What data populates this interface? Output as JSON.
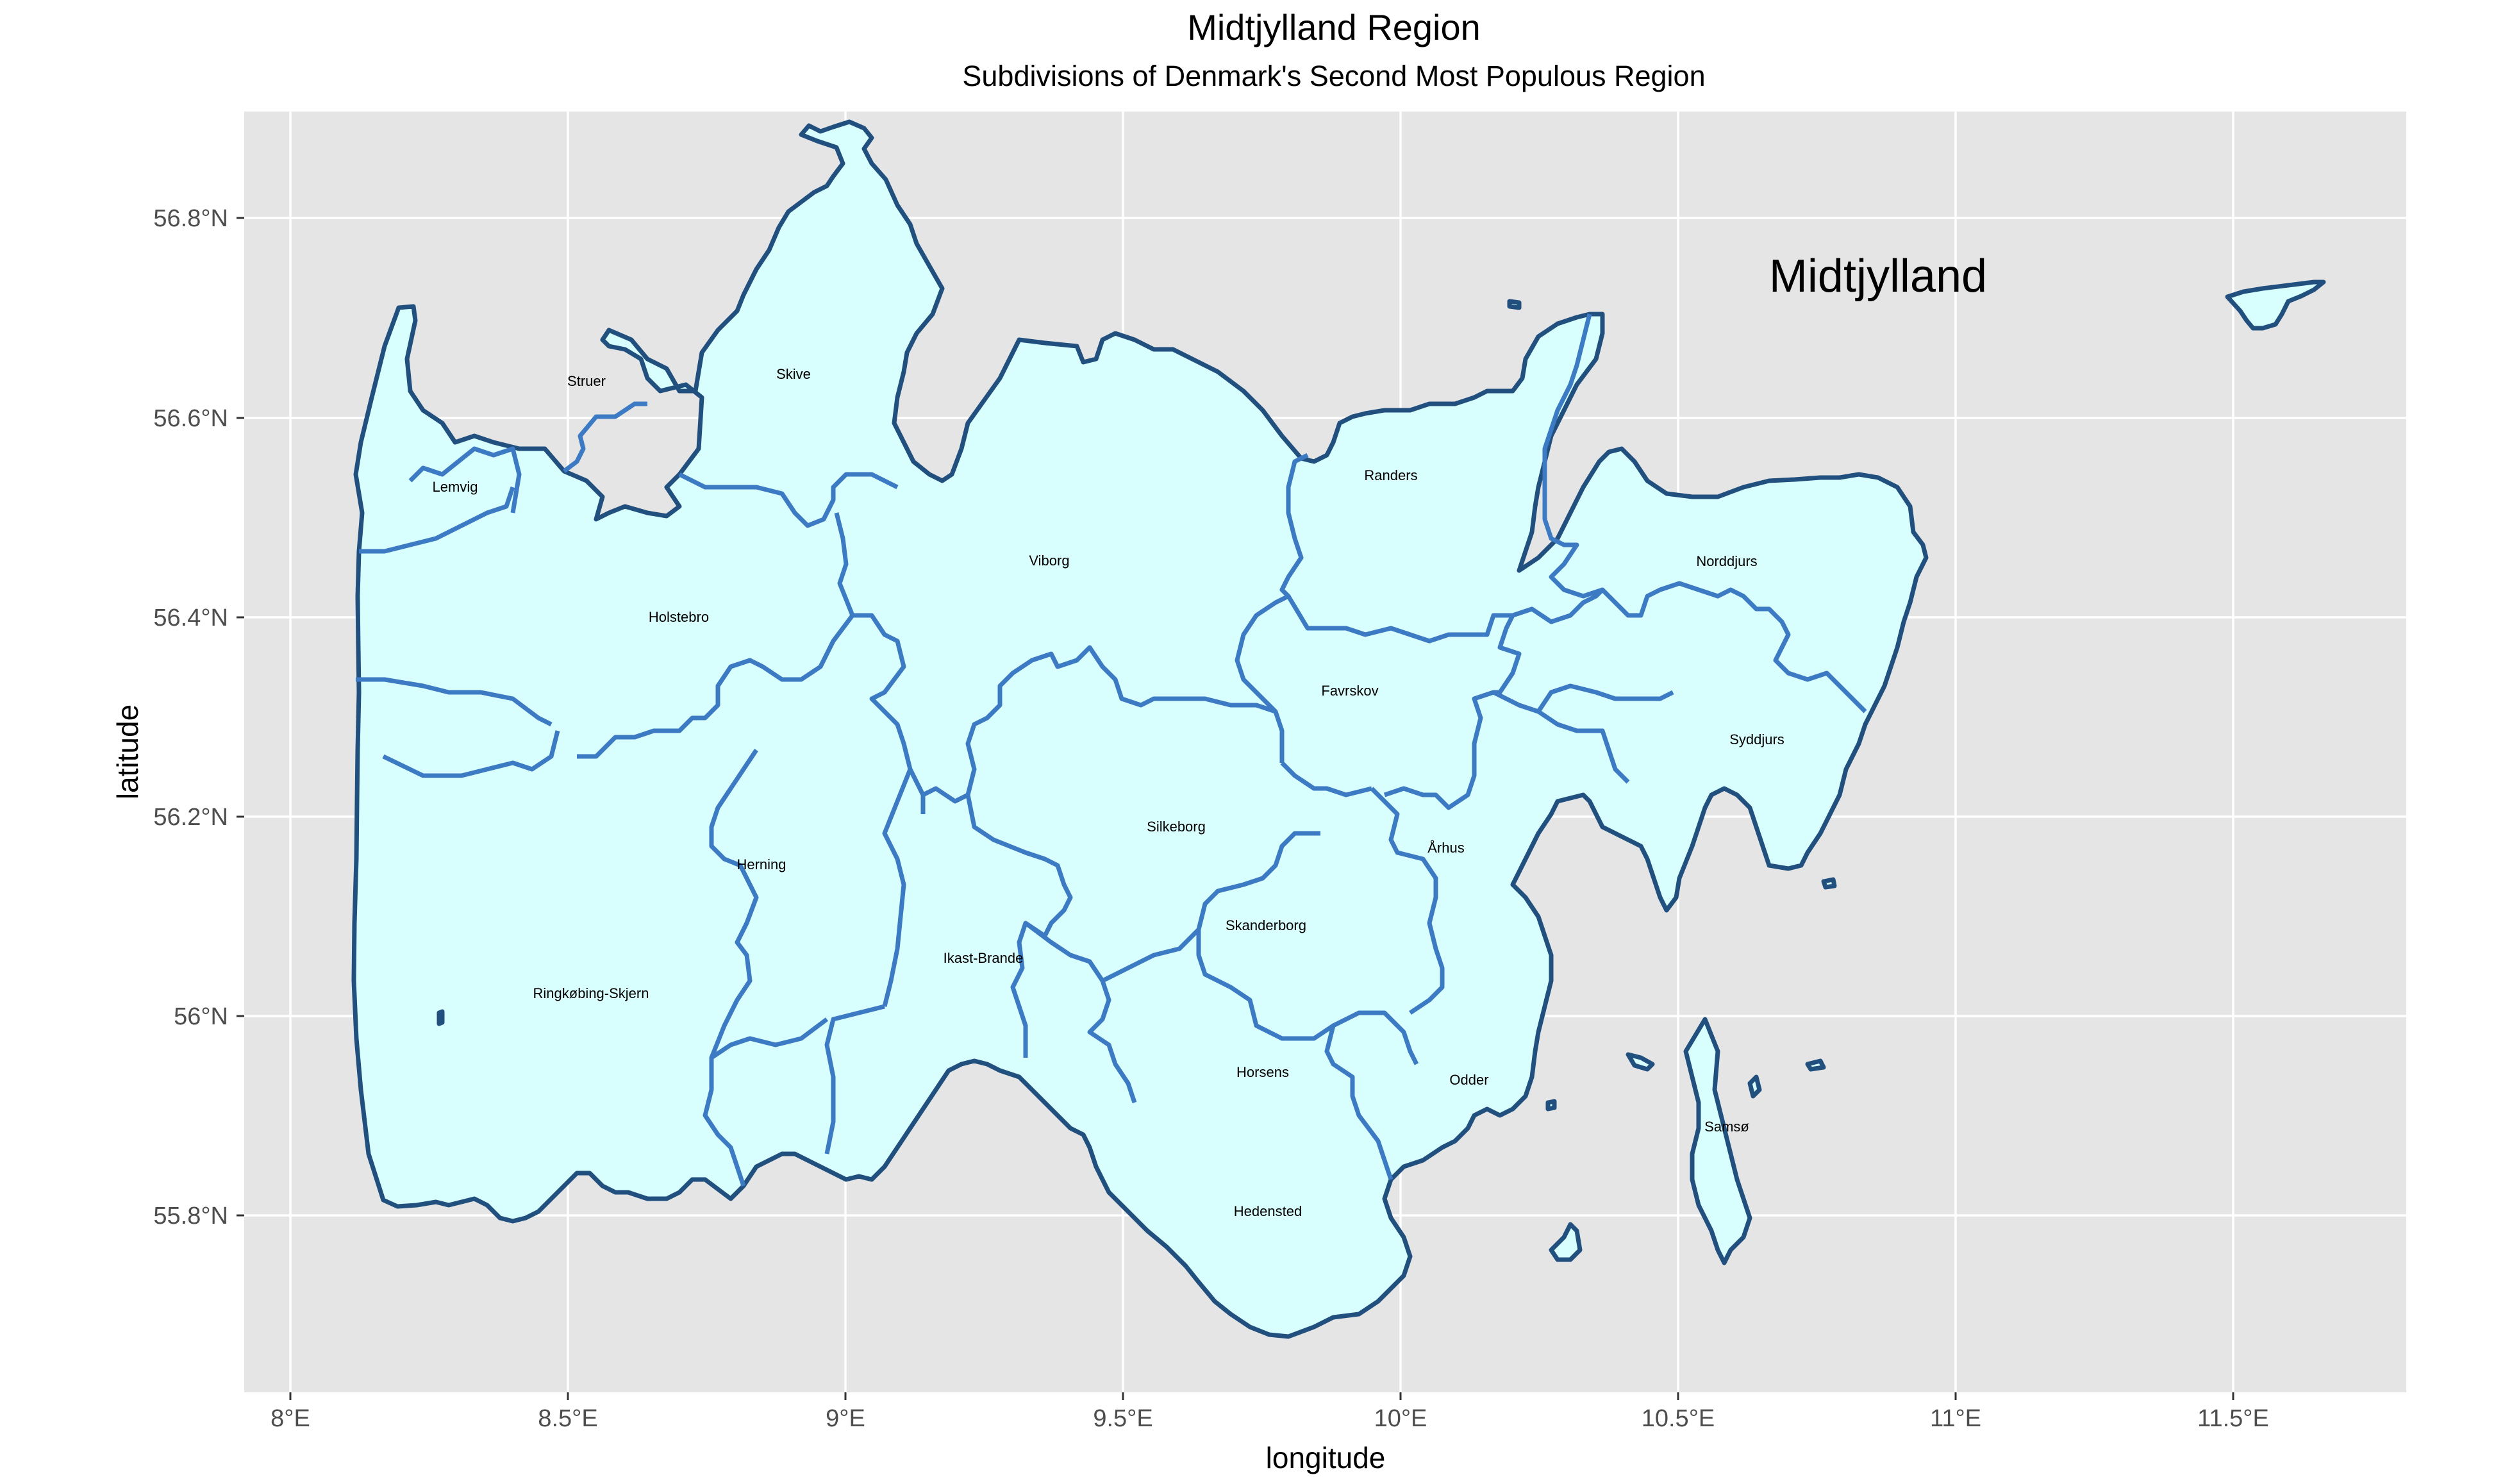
{
  "title": "Midtjylland Region",
  "subtitle": "Subdivisions of Denmark's Second Most Populous Region",
  "region_label": "Midtjylland",
  "axes": {
    "xlabel": "longitude",
    "ylabel": "latitude",
    "x_ticks": [
      "8°E",
      "8.5°E",
      "9°E",
      "9.5°E",
      "10°E",
      "10.5°E",
      "11°E",
      "11.5°E"
    ],
    "y_ticks": [
      "56.8°N",
      "56.6°N",
      "56.4°N",
      "56.2°N",
      "56°N",
      "55.8°N"
    ]
  },
  "colors": {
    "panel_background": "#e5e5e5",
    "land_fill": "#d8fefd",
    "outer_border": "#21507f",
    "inner_border": "#3c7ac3"
  },
  "municipalities": [
    {
      "name": "Lemvig"
    },
    {
      "name": "Struer"
    },
    {
      "name": "Skive"
    },
    {
      "name": "Holstebro"
    },
    {
      "name": "Viborg"
    },
    {
      "name": "Randers"
    },
    {
      "name": "Norddjurs"
    },
    {
      "name": "Favrskov"
    },
    {
      "name": "Syddjurs"
    },
    {
      "name": "Silkeborg"
    },
    {
      "name": "Herning"
    },
    {
      "name": "Århus"
    },
    {
      "name": "Skanderborg"
    },
    {
      "name": "Ikast-Brande"
    },
    {
      "name": "Ringkøbing-Skjern"
    },
    {
      "name": "Horsens"
    },
    {
      "name": "Odder"
    },
    {
      "name": "Samsø"
    },
    {
      "name": "Hedensted"
    }
  ]
}
